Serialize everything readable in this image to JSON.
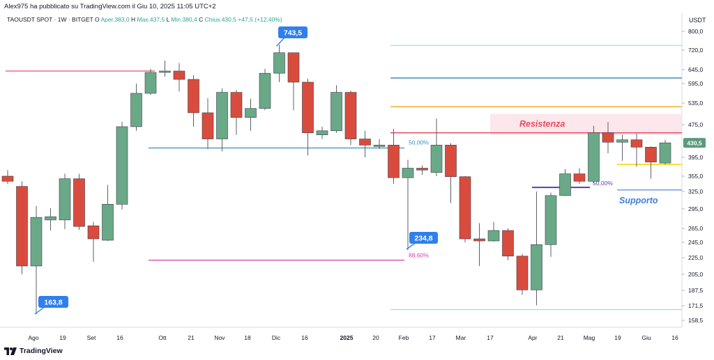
{
  "header": {
    "publisher": "Alex975 ha pubblicato su TradingView.com il Giu 10, 2025 11:05 UTC+2",
    "symbol": "TAOUSDT SPOT · 1W · BITGET",
    "ohlc": {
      "open_label": "O",
      "open": "Aper.383,0",
      "high_label": "H",
      "high": "Max.437,5",
      "low_label": "L",
      "low": "Min.380,4",
      "close_label": "C",
      "close": "Chius.430,5",
      "change": "+47,5 (+12,40%)"
    }
  },
  "price_axis": {
    "unit": "USDT",
    "ticks": [
      "800,0",
      "720,0",
      "645,0",
      "595,0",
      "535,0",
      "475,0",
      "395,0",
      "355,0",
      "325,0",
      "295,0",
      "265,0",
      "245,0",
      "225,0",
      "205,0",
      "187,5",
      "171,5",
      "158,5"
    ],
    "current_price_label": "430,5"
  },
  "time_axis": {
    "labels": [
      "Ago",
      "19",
      "Set",
      "16",
      "Ott",
      "21",
      "Nov",
      "18",
      "Dic",
      "16",
      "2025",
      "20",
      "Feb",
      "17",
      "Mar",
      "17",
      "Apr",
      "21",
      "Mag",
      "19",
      "Giu",
      "16"
    ]
  },
  "annotations": {
    "resistance_label": "Resistenza",
    "support_label": "Supporto",
    "fib_50_a": "50,00%",
    "fib_886": "88,60%",
    "fib_50_b": "50,00%",
    "callout_high": "743,5",
    "callout_low": "163,8",
    "callout_mid": "234,8"
  },
  "branding": {
    "logo_text": "TradingView"
  },
  "colors": {
    "up": "#6aa987",
    "down": "#d94c3d",
    "resistance": "#e84a5f",
    "support": "#3d7fd9",
    "orange": "#f5a623",
    "teal": "#3a8fb7",
    "pink": "#d63caa",
    "purple": "#5d3fa6",
    "callout": "#2f80ed"
  },
  "chart_data": {
    "type": "candlestick",
    "ylim": [
      150,
      830
    ],
    "candles": [
      {
        "o": 355,
        "h": 368,
        "l": 340,
        "c": 345
      },
      {
        "o": 335,
        "h": 345,
        "l": 205,
        "c": 215
      },
      {
        "o": 215,
        "h": 300,
        "l": 164,
        "c": 282
      },
      {
        "o": 278,
        "h": 296,
        "l": 262,
        "c": 283
      },
      {
        "o": 278,
        "h": 360,
        "l": 264,
        "c": 350
      },
      {
        "o": 350,
        "h": 360,
        "l": 263,
        "c": 268
      },
      {
        "o": 269,
        "h": 275,
        "l": 220,
        "c": 250
      },
      {
        "o": 248,
        "h": 338,
        "l": 247,
        "c": 303
      },
      {
        "o": 303,
        "h": 483,
        "l": 294,
        "c": 470
      },
      {
        "o": 470,
        "h": 595,
        "l": 460,
        "c": 565
      },
      {
        "o": 565,
        "h": 648,
        "l": 560,
        "c": 635
      },
      {
        "o": 635,
        "h": 680,
        "l": 620,
        "c": 640
      },
      {
        "o": 640,
        "h": 670,
        "l": 570,
        "c": 610
      },
      {
        "o": 610,
        "h": 625,
        "l": 470,
        "c": 508
      },
      {
        "o": 508,
        "h": 550,
        "l": 415,
        "c": 440
      },
      {
        "o": 440,
        "h": 580,
        "l": 410,
        "c": 568
      },
      {
        "o": 568,
        "h": 575,
        "l": 450,
        "c": 495
      },
      {
        "o": 495,
        "h": 548,
        "l": 460,
        "c": 520
      },
      {
        "o": 520,
        "h": 648,
        "l": 515,
        "c": 632
      },
      {
        "o": 632,
        "h": 743,
        "l": 600,
        "c": 710
      },
      {
        "o": 710,
        "h": 705,
        "l": 515,
        "c": 600
      },
      {
        "o": 600,
        "h": 612,
        "l": 400,
        "c": 455
      },
      {
        "o": 450,
        "h": 470,
        "l": 440,
        "c": 460
      },
      {
        "o": 460,
        "h": 590,
        "l": 455,
        "c": 568
      },
      {
        "o": 568,
        "h": 573,
        "l": 425,
        "c": 440
      },
      {
        "o": 440,
        "h": 460,
        "l": 395,
        "c": 425
      },
      {
        "o": 422,
        "h": 440,
        "l": 415,
        "c": 425
      },
      {
        "o": 425,
        "h": 465,
        "l": 340,
        "c": 352
      },
      {
        "o": 352,
        "h": 390,
        "l": 235,
        "c": 372
      },
      {
        "o": 372,
        "h": 378,
        "l": 358,
        "c": 368
      },
      {
        "o": 363,
        "h": 492,
        "l": 355,
        "c": 425
      },
      {
        "o": 425,
        "h": 430,
        "l": 305,
        "c": 354
      },
      {
        "o": 354,
        "h": 355,
        "l": 245,
        "c": 250
      },
      {
        "o": 250,
        "h": 273,
        "l": 215,
        "c": 247
      },
      {
        "o": 247,
        "h": 275,
        "l": 246,
        "c": 262
      },
      {
        "o": 262,
        "h": 265,
        "l": 222,
        "c": 227
      },
      {
        "o": 227,
        "h": 230,
        "l": 183,
        "c": 188
      },
      {
        "o": 188,
        "h": 325,
        "l": 172,
        "c": 242
      },
      {
        "o": 242,
        "h": 323,
        "l": 226,
        "c": 318
      },
      {
        "o": 318,
        "h": 370,
        "l": 317,
        "c": 360
      },
      {
        "o": 360,
        "h": 372,
        "l": 340,
        "c": 345
      },
      {
        "o": 345,
        "h": 472,
        "l": 341,
        "c": 455
      },
      {
        "o": 455,
        "h": 482,
        "l": 405,
        "c": 432
      },
      {
        "o": 432,
        "h": 450,
        "l": 388,
        "c": 438
      },
      {
        "o": 438,
        "h": 453,
        "l": 375,
        "c": 420
      },
      {
        "o": 420,
        "h": 422,
        "l": 350,
        "c": 385
      },
      {
        "o": 383,
        "h": 437.5,
        "l": 380.4,
        "c": 430.5
      }
    ]
  }
}
